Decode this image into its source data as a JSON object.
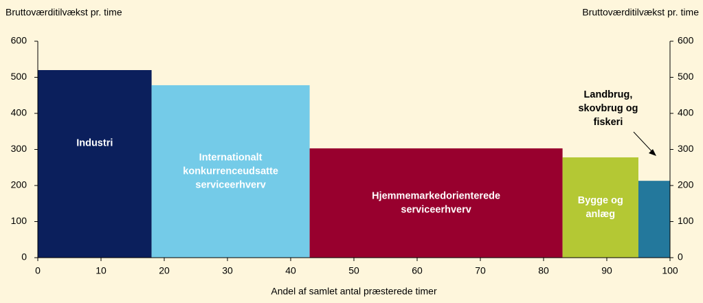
{
  "chart_data": {
    "type": "variable-width-bar",
    "ylabel": "Bruttoværditilvækst  pr. time",
    "y2label": "Bruttoværditilvækst  pr. time",
    "xlabel": "Andel af samlet antal præsterede timer",
    "categories": [
      [
        "Industri"
      ],
      [
        "Internationalt",
        "konkurrenceudsatte",
        "serviceerhverv"
      ],
      [
        "Hjemmemarkedorienterede",
        "serviceerhverv"
      ],
      [
        "Bygge og",
        "anlæg"
      ],
      [
        "Landbrug,",
        "skovbrug og",
        "fiskeri"
      ]
    ],
    "widths": [
      18,
      25,
      40,
      12,
      5
    ],
    "values": [
      520,
      478,
      303,
      278,
      213
    ],
    "colors": [
      "#0b1f5c",
      "#74cbe8",
      "#98002e",
      "#b4c834",
      "#23789c"
    ],
    "xlim": [
      0,
      100
    ],
    "xticks": [
      0,
      10,
      20,
      30,
      40,
      50,
      60,
      70,
      80,
      90,
      100
    ],
    "ylim": [
      0,
      600
    ],
    "yticks": [
      0,
      100,
      200,
      300,
      400,
      500,
      600
    ],
    "y2lim": [
      0,
      600
    ],
    "y2ticks": [
      0,
      100,
      200,
      300,
      400,
      500,
      600
    ],
    "grid": false
  }
}
